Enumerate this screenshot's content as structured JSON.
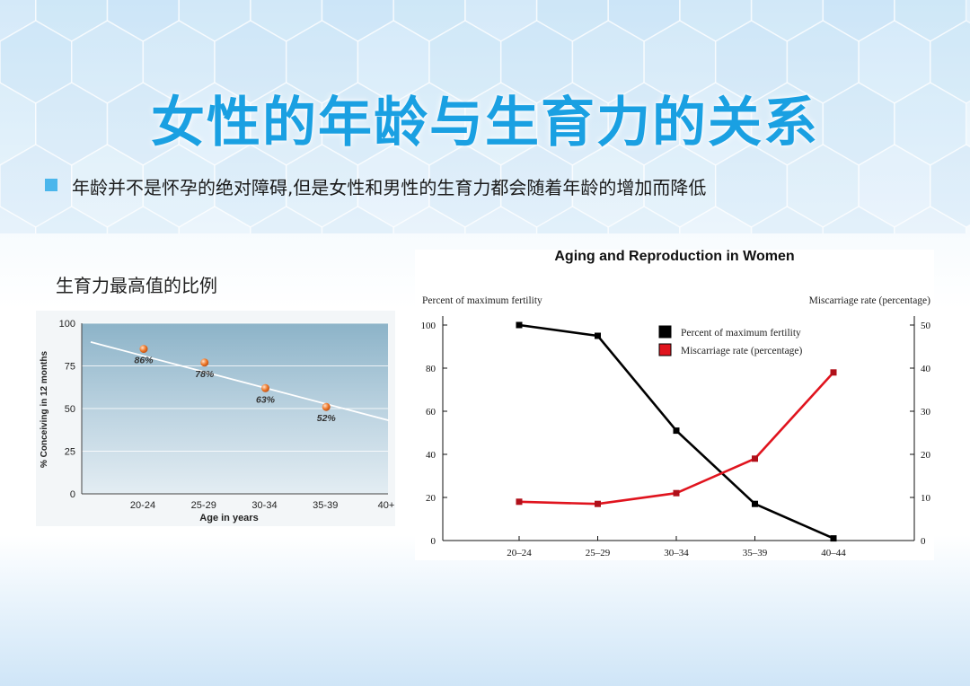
{
  "title": "女性的年龄与生育力的关系",
  "bullet": "年龄并不是怀孕的绝对障碍,但是女性和男性的生育力都会随着年龄的增加而降低",
  "left_subtitle": "生育力最高值的比例",
  "colors": {
    "title": "#1aa0e2",
    "bullet": "#4ab6ec",
    "fertility_line": "#000000",
    "miscarriage_line": "#e0141e",
    "left_marker": "#f07a2a"
  },
  "chart_data": [
    {
      "type": "line",
      "title": "",
      "xlabel": "Age in years",
      "ylabel": "% Conceiving in 12 months",
      "categories": [
        "20-24",
        "25-29",
        "30-34",
        "35-39",
        "40+"
      ],
      "ylim": [
        0,
        100
      ],
      "yticks": [
        0,
        25,
        50,
        75,
        100
      ],
      "points": [
        {
          "x": "20-24",
          "y": 86,
          "label": "86%"
        },
        {
          "x": "25-29",
          "y": 78,
          "label": "78%"
        },
        {
          "x": "30-34",
          "y": 63,
          "label": "63%"
        },
        {
          "x": "35-39",
          "y": 52,
          "label": "52%"
        }
      ],
      "trend": [
        [
          0,
          89
        ],
        [
          4.9,
          43
        ]
      ],
      "grid": true
    },
    {
      "type": "line",
      "title": "Aging and Reproduction in Women",
      "xlabel": "",
      "ylabel_left": "Percent of maximum fertility",
      "ylabel_right": "Miscarriage rate (percentage)",
      "categories": [
        "20–24",
        "25–29",
        "30–34",
        "35–39",
        "40–44"
      ],
      "ylim_left": [
        0,
        100
      ],
      "yticks_left": [
        0,
        20,
        40,
        60,
        80,
        100
      ],
      "ylim_right": [
        0,
        50
      ],
      "yticks_right": [
        0,
        10,
        20,
        30,
        40,
        50
      ],
      "legend_position": "top-right",
      "grid": false,
      "series": [
        {
          "name": "Percent of maximum fertility",
          "axis": "left",
          "color": "#000000",
          "values": [
            100,
            95,
            51,
            17,
            1
          ]
        },
        {
          "name": "Miscarriage rate (percentage)",
          "axis": "right",
          "color": "#e0141e",
          "values": [
            9,
            8.5,
            11,
            19,
            39
          ]
        }
      ]
    }
  ]
}
